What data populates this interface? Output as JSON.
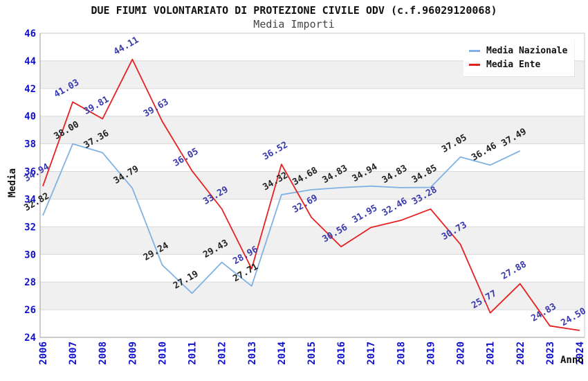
{
  "title": "DUE FIUMI VOLONTARIATO DI PROTEZIONE CIVILE ODV (c.f.96029120068)",
  "subtitle": "Media Importi",
  "chart_data": {
    "type": "line",
    "x": [
      2006,
      2007,
      2008,
      2009,
      2010,
      2011,
      2012,
      2013,
      2014,
      2015,
      2016,
      2017,
      2018,
      2019,
      2020,
      2021,
      2022,
      2023,
      2024
    ],
    "series": [
      {
        "name": "Media Nazionale",
        "color": "#7fb2e3",
        "label_color": "#222222",
        "values": [
          32.82,
          38.0,
          37.36,
          34.79,
          29.24,
          27.19,
          29.43,
          27.71,
          34.32,
          34.68,
          34.83,
          34.94,
          34.83,
          34.85,
          37.05,
          36.46,
          37.49,
          null,
          null
        ]
      },
      {
        "name": "Media Ente",
        "color": "#e62020",
        "label_color": "#3939ae",
        "values": [
          34.94,
          41.03,
          39.81,
          44.11,
          39.63,
          36.05,
          33.29,
          28.96,
          36.52,
          32.69,
          30.56,
          31.95,
          32.46,
          33.28,
          30.73,
          25.77,
          27.88,
          24.83,
          24.5
        ]
      }
    ],
    "xlabel": "Anno",
    "ylabel": "Media",
    "ylim": [
      24,
      46
    ],
    "ytick_step": 2,
    "grid": "horizontal-gridlines-with-alternating-bands",
    "legend_position": "top-right",
    "tick_color": "#1111cc",
    "band_color": "#f0f0f0",
    "gridline_color": "#d9d9d9",
    "border_color": "#c9c9c9",
    "axis_color": "#9a9a9a",
    "label_rotation_deg": -30
  }
}
